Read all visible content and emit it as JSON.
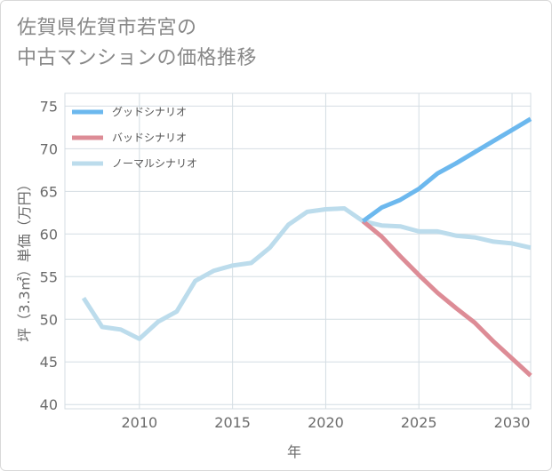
{
  "title_line1": "佐賀県佐賀市若宮の",
  "title_line2": "中古マンションの価格推移",
  "chart_data": {
    "type": "line",
    "xlabel": "年",
    "ylabel": "坪（3.3㎡）単価（万円）",
    "xlim": [
      2006,
      2031
    ],
    "ylim": [
      39.5,
      76.5
    ],
    "xticks": [
      2010,
      2015,
      2020,
      2025,
      2030
    ],
    "yticks": [
      40,
      45,
      50,
      55,
      60,
      65,
      70,
      75
    ],
    "grid": true,
    "legend_position": "top-left",
    "series": [
      {
        "name": "グッドシナリオ",
        "color": "#6cb8ee",
        "points": [
          [
            2022,
            61.5
          ],
          [
            2023,
            63.1
          ],
          [
            2024,
            64.0
          ],
          [
            2025,
            65.3
          ],
          [
            2026,
            67.1
          ],
          [
            2027,
            68.3
          ],
          [
            2028,
            69.6
          ],
          [
            2029,
            70.9
          ],
          [
            2030,
            72.2
          ],
          [
            2031,
            73.5
          ]
        ]
      },
      {
        "name": "バッドシナリオ",
        "color": "#dd8c96",
        "points": [
          [
            2022,
            61.5
          ],
          [
            2023,
            59.7
          ],
          [
            2024,
            57.4
          ],
          [
            2025,
            55.2
          ],
          [
            2026,
            53.1
          ],
          [
            2027,
            51.3
          ],
          [
            2028,
            49.6
          ],
          [
            2029,
            47.4
          ],
          [
            2030,
            45.4
          ],
          [
            2031,
            43.4
          ]
        ]
      },
      {
        "name": "ノーマルシナリオ",
        "color": "#bcdcec",
        "points": [
          [
            2007,
            52.5
          ],
          [
            2008,
            49.1
          ],
          [
            2009,
            48.8
          ],
          [
            2010,
            47.7
          ],
          [
            2011,
            49.7
          ],
          [
            2012,
            50.9
          ],
          [
            2013,
            54.5
          ],
          [
            2014,
            55.7
          ],
          [
            2015,
            56.3
          ],
          [
            2016,
            56.6
          ],
          [
            2017,
            58.4
          ],
          [
            2018,
            61.1
          ],
          [
            2019,
            62.6
          ],
          [
            2020,
            62.9
          ],
          [
            2021,
            63.0
          ],
          [
            2022,
            61.5
          ],
          [
            2023,
            61.0
          ],
          [
            2024,
            60.9
          ],
          [
            2025,
            60.3
          ],
          [
            2026,
            60.3
          ],
          [
            2027,
            59.8
          ],
          [
            2028,
            59.6
          ],
          [
            2029,
            59.1
          ],
          [
            2030,
            58.9
          ],
          [
            2031,
            58.4
          ]
        ]
      }
    ]
  }
}
